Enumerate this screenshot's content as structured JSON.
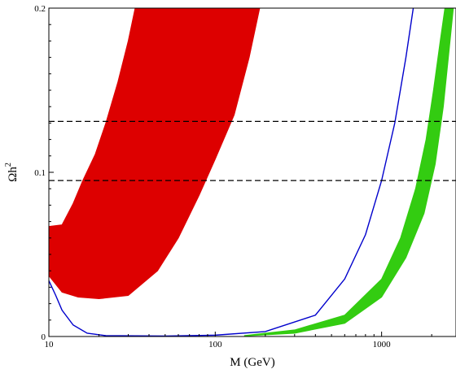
{
  "chart_data": {
    "type": "area",
    "xlabel": "M (GeV)",
    "ylabel": "Ωh",
    "ylabel_superscript": "2",
    "x_scale": "log",
    "xlim": [
      10,
      2800
    ],
    "ylim": [
      0,
      0.2
    ],
    "x_ticks": [
      10,
      100,
      1000
    ],
    "x_tick_labels": [
      "10",
      "100",
      "1000"
    ],
    "y_ticks": [
      0,
      0.1,
      0.2
    ],
    "y_tick_labels": [
      "0",
      "0.1",
      "0.2"
    ],
    "grid": false,
    "reference_lines": [
      {
        "y": 0.095,
        "style": "dashed",
        "color": "#000000"
      },
      {
        "y": 0.131,
        "style": "dashed",
        "color": "#000000"
      }
    ],
    "series": [
      {
        "type": "band",
        "color": "#dd0000",
        "lower": [
          [
            10,
            0.037
          ],
          [
            12,
            0.027
          ],
          [
            15,
            0.024
          ],
          [
            20,
            0.023
          ],
          [
            30,
            0.025
          ],
          [
            45,
            0.04
          ],
          [
            60,
            0.06
          ],
          [
            80,
            0.086
          ],
          [
            100,
            0.108
          ],
          [
            130,
            0.135
          ],
          [
            160,
            0.17
          ],
          [
            185,
            0.2
          ]
        ],
        "upper": [
          [
            10,
            0.067
          ],
          [
            12,
            0.068
          ],
          [
            14,
            0.081
          ],
          [
            16,
            0.095
          ],
          [
            19,
            0.111
          ],
          [
            22,
            0.13
          ],
          [
            26,
            0.155
          ],
          [
            30,
            0.18
          ],
          [
            33,
            0.2
          ]
        ]
      },
      {
        "type": "line",
        "color": "#0000cc",
        "points": [
          [
            10,
            0.034
          ],
          [
            11,
            0.025
          ],
          [
            12,
            0.016
          ],
          [
            14,
            0.007
          ],
          [
            17,
            0.002
          ],
          [
            22,
            0.0005
          ],
          [
            50,
            0.0003
          ],
          [
            100,
            0.0008
          ],
          [
            200,
            0.003
          ],
          [
            400,
            0.013
          ],
          [
            600,
            0.035
          ],
          [
            800,
            0.062
          ],
          [
            1000,
            0.095
          ],
          [
            1200,
            0.13
          ],
          [
            1400,
            0.17
          ],
          [
            1550,
            0.2
          ]
        ]
      },
      {
        "type": "band",
        "color": "#33cc11",
        "lower": [
          [
            150,
            0.0003
          ],
          [
            300,
            0.002
          ],
          [
            600,
            0.008
          ],
          [
            1000,
            0.024
          ],
          [
            1400,
            0.048
          ],
          [
            1800,
            0.075
          ],
          [
            2100,
            0.105
          ],
          [
            2350,
            0.14
          ],
          [
            2550,
            0.175
          ],
          [
            2700,
            0.2
          ]
        ],
        "upper": [
          [
            150,
            0.0006
          ],
          [
            300,
            0.004
          ],
          [
            600,
            0.013
          ],
          [
            1000,
            0.035
          ],
          [
            1300,
            0.06
          ],
          [
            1600,
            0.09
          ],
          [
            1850,
            0.12
          ],
          [
            2050,
            0.15
          ],
          [
            2250,
            0.18
          ],
          [
            2400,
            0.2
          ]
        ]
      }
    ]
  }
}
